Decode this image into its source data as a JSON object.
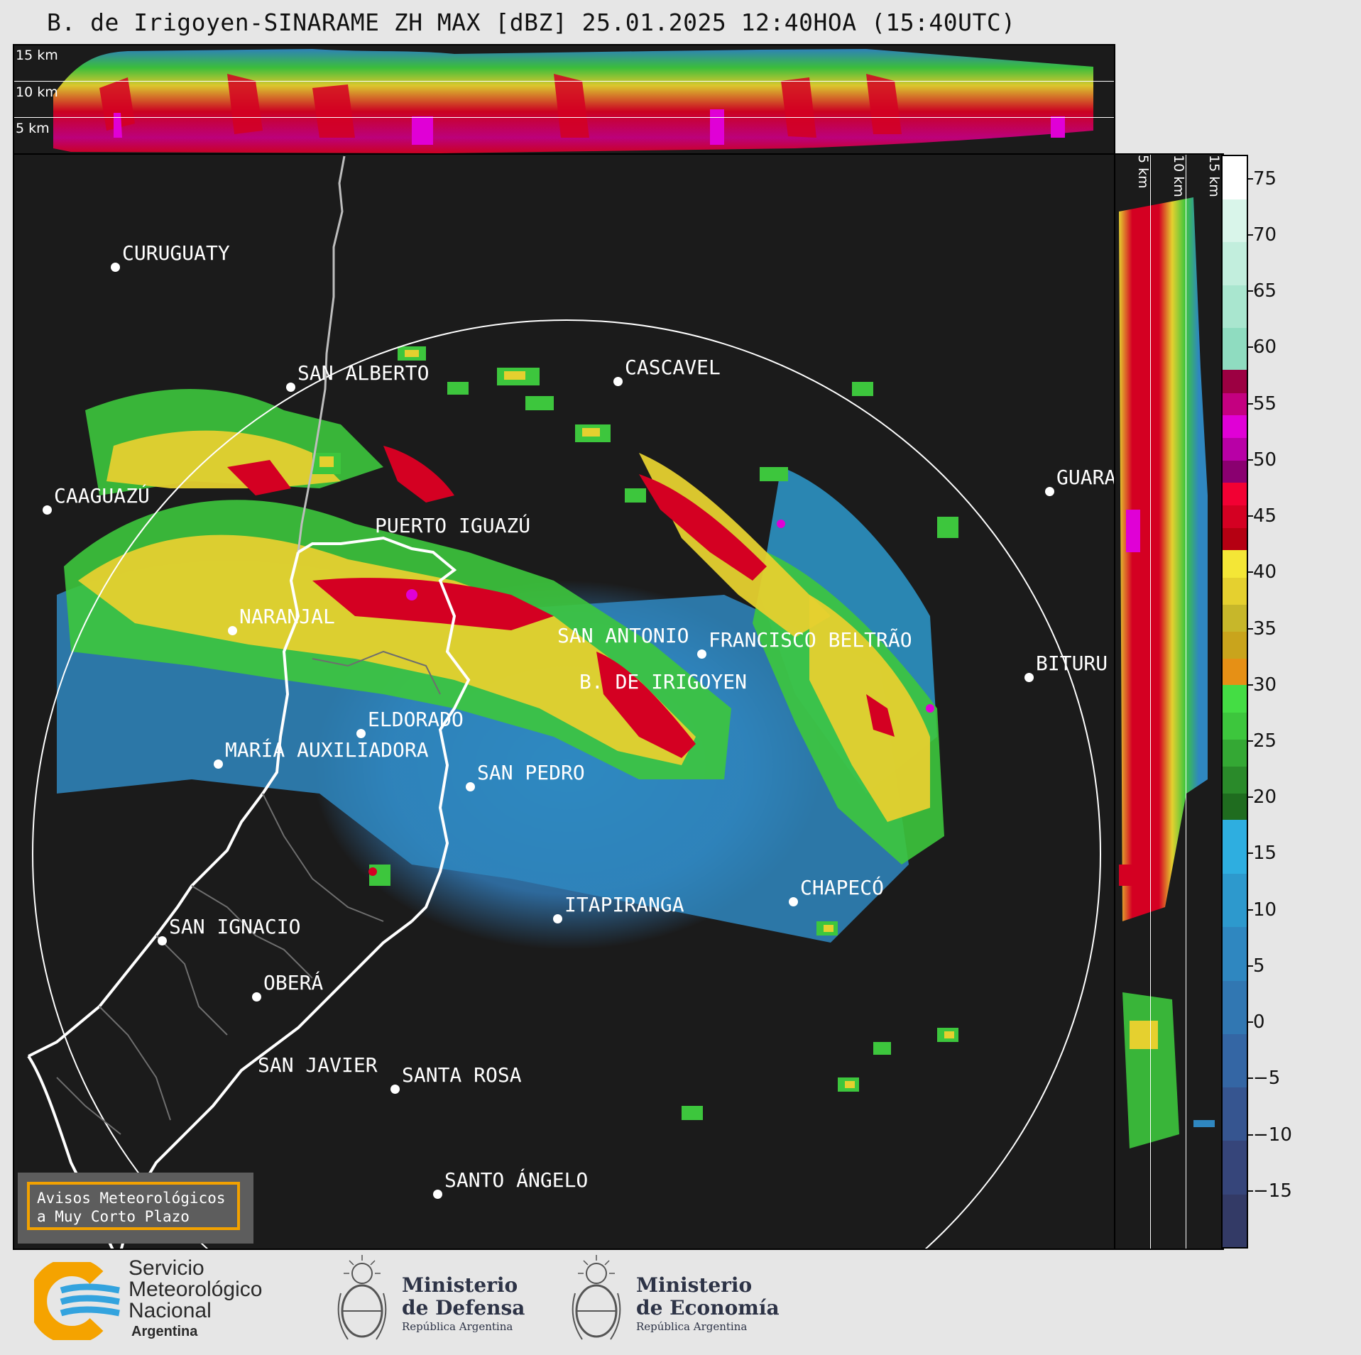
{
  "title": "B. de Irigoyen-SINARAME ZH MAX [dBZ] 25.01.2025 12:40HOA (15:40UTC)",
  "top_panel": {
    "labels": [
      "15 km",
      "10 km",
      "5 km"
    ]
  },
  "side_panel": {
    "labels": [
      "5 km",
      "10 km",
      "15 km"
    ]
  },
  "colorbar": {
    "unit": "dBZ",
    "ticks": [
      "75",
      "70",
      "65",
      "60",
      "55",
      "50",
      "45",
      "40",
      "35",
      "30",
      "25",
      "20",
      "15",
      "10",
      "5",
      "0",
      "−5",
      "−10",
      "−15"
    ],
    "bands": [
      {
        "from": 58,
        "to": 77,
        "colors": [
          "#8fdcc0",
          "#a9e6cf",
          "#c2eedd",
          "#d9f5ea",
          "#ffffff"
        ]
      },
      {
        "from": 48,
        "to": 58,
        "colors": [
          "#8a0070",
          "#b800a6",
          "#e000d6",
          "#c40080",
          "#9c0042"
        ]
      },
      {
        "from": 42,
        "to": 48,
        "colors": [
          "#b50012",
          "#d40022",
          "#f20033"
        ]
      },
      {
        "from": 30,
        "to": 42,
        "colors": [
          "#e69015",
          "#c9a41c",
          "#c7b72a",
          "#e5d02f",
          "#f4e636"
        ]
      },
      {
        "from": 18,
        "to": 30,
        "colors": [
          "#1f6c1f",
          "#2a8a2a",
          "#34a834",
          "#3dc63d",
          "#44dd44"
        ]
      },
      {
        "from": -20,
        "to": 18,
        "colors": [
          "#333a66",
          "#36457a",
          "#365590",
          "#3466a4",
          "#3177b2",
          "#2f87c0",
          "#2d99cd",
          "#2eaee0"
        ]
      }
    ]
  },
  "cities": [
    {
      "name": "CURUGUATY"
    },
    {
      "name": "SAN ALBERTO"
    },
    {
      "name": "CASCAVEL"
    },
    {
      "name": "CAAGUAZÚ"
    },
    {
      "name": "PUERTO IGUAZÚ"
    },
    {
      "name": "GUARA"
    },
    {
      "name": "NARANJAL"
    },
    {
      "name": "SAN ANTONIO"
    },
    {
      "name": "FRANCISCO BELTRÃO"
    },
    {
      "name": "BITURU"
    },
    {
      "name": "B. DE IRIGOYEN"
    },
    {
      "name": "ELDORADO"
    },
    {
      "name": "MARÍA AUXILIADORA"
    },
    {
      "name": "SAN PEDRO"
    },
    {
      "name": "CHAPECÓ"
    },
    {
      "name": "ITAPIRANGA"
    },
    {
      "name": "SAN IGNACIO"
    },
    {
      "name": "OBERÁ"
    },
    {
      "name": "SAN JAVIER"
    },
    {
      "name": "SANTA ROSA"
    },
    {
      "name": "SANTO ÁNGELO"
    }
  ],
  "badge": {
    "line1": "Avisos Meteorológicos",
    "line2": "a Muy Corto Plazo"
  },
  "footer": {
    "smn": {
      "line1": "Servicio",
      "line2": "Meteorológico",
      "line3": "Nacional",
      "line4": "Argentina"
    },
    "defensa": {
      "line1": "Ministerio",
      "line2": "de Defensa",
      "line3": "República Argentina"
    },
    "economia": {
      "line1": "Ministerio",
      "line2": "de Economía",
      "line3": "República Argentina"
    }
  },
  "colors": {
    "background": "#1b1b1b",
    "border_river": "#ffffff",
    "range_ring": "#ffffff"
  }
}
